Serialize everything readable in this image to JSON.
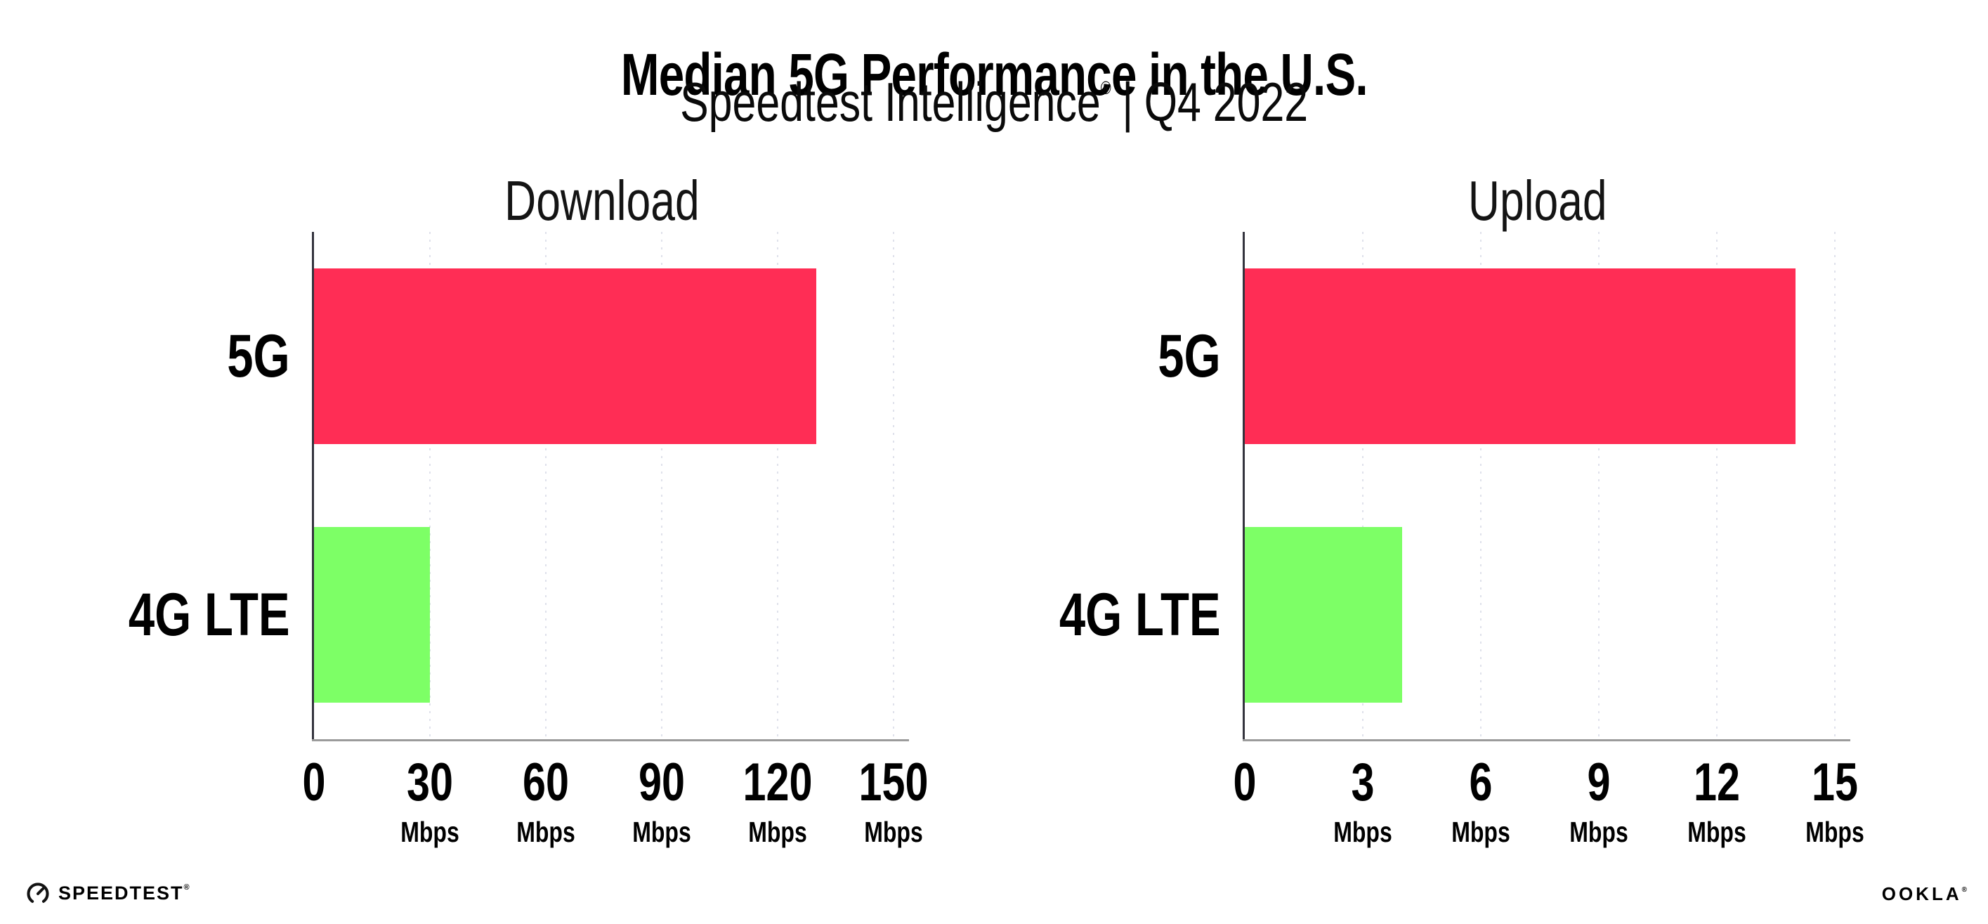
{
  "header": {
    "title": "Median 5G Performance in the U.S.",
    "subtitle_brand": "Speedtest Intelligence",
    "subtitle_registered": "®",
    "subtitle_divider": "|",
    "subtitle_period": "Q4 2022"
  },
  "chart_data": [
    {
      "type": "bar",
      "orientation": "horizontal",
      "title": "Download",
      "categories": [
        "5G",
        "4G LTE"
      ],
      "values": [
        130,
        30
      ],
      "unit": "Mbps",
      "xlabel": "",
      "ylabel": "",
      "xlim": [
        0,
        150
      ],
      "xticks": [
        0,
        30,
        60,
        90,
        120,
        150
      ],
      "bar_colors": [
        "#ff2d55",
        "#7dff66"
      ],
      "grid": "dotted-vertical",
      "legend": "none"
    },
    {
      "type": "bar",
      "orientation": "horizontal",
      "title": "Upload",
      "categories": [
        "5G",
        "4G LTE"
      ],
      "values": [
        14,
        4
      ],
      "unit": "Mbps",
      "xlabel": "",
      "ylabel": "",
      "xlim": [
        0,
        15
      ],
      "xticks": [
        0,
        3,
        6,
        9,
        12,
        15
      ],
      "bar_colors": [
        "#ff2d55",
        "#7dff66"
      ],
      "grid": "dotted-vertical",
      "legend": "none"
    }
  ],
  "footer": {
    "speedtest_label": "SPEEDTEST",
    "speedtest_mark": "®",
    "ookla_label": "OOKLA",
    "ookla_mark": "®"
  },
  "colors": {
    "bar_5g": "#ff2d55",
    "bar_4g_lte": "#7dff66",
    "gridline": "#dfe1eb",
    "axis_line": "#9b9b9b",
    "spine": "#34343e",
    "text": "#000000"
  }
}
